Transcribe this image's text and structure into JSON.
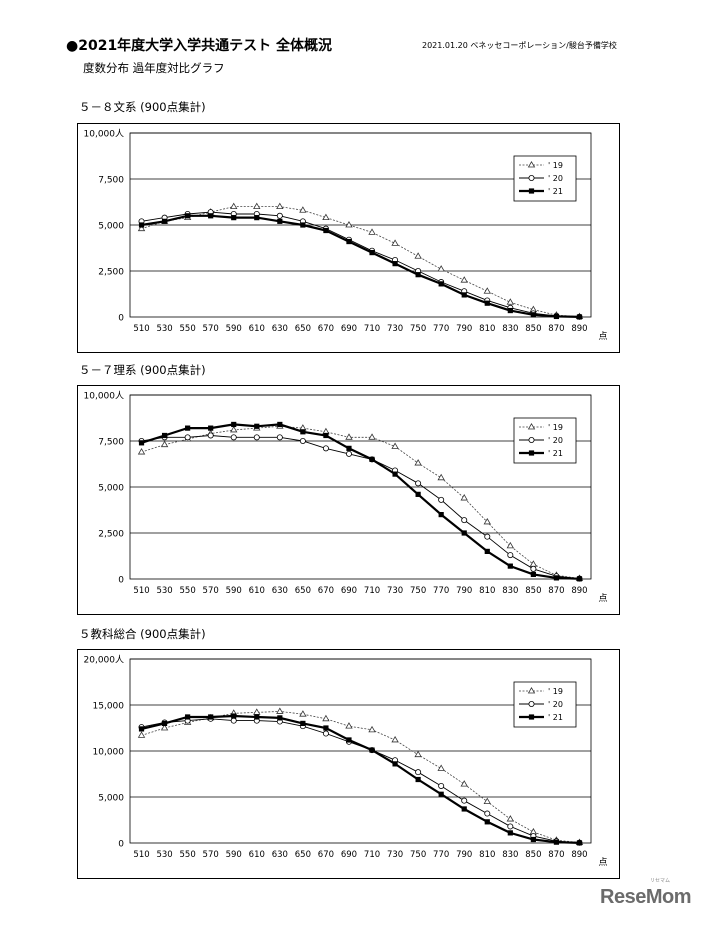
{
  "header": {
    "title": "●2021年度大学入学共通テスト 全体概況",
    "credit": "2021.01.20 ベネッセコーポレーション/駿台予備学校",
    "subtitle": "度数分布 過年度対比グラフ"
  },
  "brand": {
    "logo_text": "ReseMom",
    "logo_sub": "リセマム"
  },
  "chart_data": [
    {
      "type": "line",
      "heading": "５－８文系 (900点集計)",
      "x": [
        510,
        530,
        550,
        570,
        590,
        610,
        630,
        650,
        670,
        690,
        710,
        730,
        750,
        770,
        790,
        810,
        830,
        850,
        870,
        890
      ],
      "x_unit": "点",
      "ylim": [
        0,
        10000
      ],
      "yticks": [
        "0",
        "2,500",
        "5,000",
        "7,500",
        "10,000人"
      ],
      "grid": true,
      "legend_position": "top-right",
      "series": [
        {
          "name": "' 19",
          "style": "dashed-triangle",
          "values": [
            4800,
            5200,
            5400,
            5700,
            6000,
            6000,
            6000,
            5800,
            5400,
            5000,
            4600,
            4000,
            3300,
            2600,
            2000,
            1400,
            800,
            400,
            100,
            20
          ]
        },
        {
          "name": "' 20",
          "style": "circle",
          "values": [
            5200,
            5400,
            5600,
            5700,
            5600,
            5600,
            5500,
            5200,
            4800,
            4200,
            3600,
            3100,
            2500,
            1900,
            1400,
            900,
            500,
            200,
            60,
            10
          ]
        },
        {
          "name": "' 21",
          "style": "bold-square",
          "values": [
            5000,
            5200,
            5500,
            5500,
            5400,
            5400,
            5200,
            5000,
            4700,
            4100,
            3500,
            2900,
            2300,
            1800,
            1200,
            750,
            350,
            120,
            30,
            5
          ]
        }
      ]
    },
    {
      "type": "line",
      "heading": "５－７理系 (900点集計)",
      "x": [
        510,
        530,
        550,
        570,
        590,
        610,
        630,
        650,
        670,
        690,
        710,
        730,
        750,
        770,
        790,
        810,
        830,
        850,
        870,
        890
      ],
      "x_unit": "点",
      "ylim": [
        0,
        10000
      ],
      "yticks": [
        "0",
        "2,500",
        "5,000",
        "7,500",
        "10,000人"
      ],
      "grid": true,
      "legend_position": "top-right",
      "series": [
        {
          "name": "' 19",
          "style": "dashed-triangle",
          "values": [
            6900,
            7300,
            7600,
            7900,
            8100,
            8200,
            8300,
            8200,
            8000,
            7700,
            7700,
            7200,
            6300,
            5500,
            4400,
            3100,
            1800,
            800,
            200,
            30
          ]
        },
        {
          "name": "' 20",
          "style": "circle",
          "values": [
            7500,
            7700,
            7700,
            7800,
            7700,
            7700,
            7700,
            7500,
            7100,
            6800,
            6500,
            5900,
            5200,
            4300,
            3200,
            2300,
            1300,
            550,
            150,
            20
          ]
        },
        {
          "name": "' 21",
          "style": "bold-square",
          "values": [
            7400,
            7800,
            8200,
            8200,
            8400,
            8300,
            8400,
            8000,
            7800,
            7100,
            6500,
            5700,
            4600,
            3500,
            2500,
            1500,
            700,
            250,
            60,
            10
          ]
        }
      ]
    },
    {
      "type": "line",
      "heading": "５教科総合 (900点集計)",
      "x": [
        510,
        530,
        550,
        570,
        590,
        610,
        630,
        650,
        670,
        690,
        710,
        730,
        750,
        770,
        790,
        810,
        830,
        850,
        870,
        890
      ],
      "x_unit": "点",
      "ylim": [
        0,
        20000
      ],
      "yticks": [
        "0",
        "5,000",
        "10,000",
        "15,000",
        "20,000人"
      ],
      "grid": true,
      "legend_position": "top-right",
      "series": [
        {
          "name": "' 19",
          "style": "dashed-triangle",
          "values": [
            11700,
            12500,
            13100,
            13600,
            14100,
            14200,
            14300,
            14000,
            13500,
            12700,
            12300,
            11200,
            9600,
            8100,
            6400,
            4500,
            2600,
            1200,
            300,
            50
          ]
        },
        {
          "name": "' 20",
          "style": "circle",
          "values": [
            12600,
            13100,
            13300,
            13500,
            13300,
            13300,
            13200,
            12700,
            11900,
            11000,
            10100,
            9000,
            7700,
            6200,
            4600,
            3200,
            1800,
            750,
            200,
            30
          ]
        },
        {
          "name": "' 21",
          "style": "bold-square",
          "values": [
            12400,
            13000,
            13700,
            13700,
            13800,
            13700,
            13600,
            13000,
            12500,
            11200,
            10100,
            8600,
            6900,
            5300,
            3700,
            2300,
            1100,
            380,
            90,
            15
          ]
        }
      ]
    }
  ]
}
